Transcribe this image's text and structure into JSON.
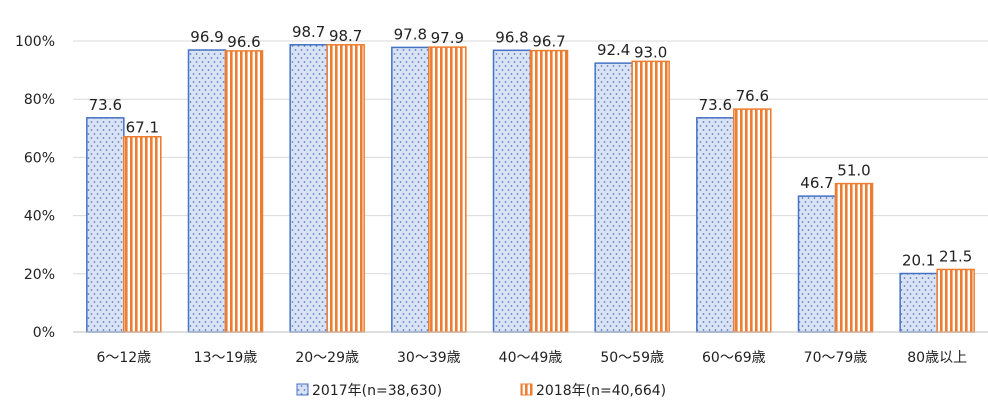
{
  "chart_data": {
    "type": "bar",
    "title": "",
    "xlabel": "",
    "ylabel": "",
    "ylim": [
      0,
      100
    ],
    "y_ticks": [
      "0%",
      "20%",
      "40%",
      "60%",
      "80%",
      "100%"
    ],
    "categories": [
      "6～12歳",
      "13～19歳",
      "20～29歳",
      "30～39歳",
      "40～49歳",
      "50～59歳",
      "60～69歳",
      "70～79歳",
      "80歳以上"
    ],
    "series": [
      {
        "name": "2017年(n=38,630)",
        "values": [
          73.6,
          96.9,
          98.7,
          97.8,
          96.8,
          92.4,
          73.6,
          46.7,
          20.1
        ],
        "labels": [
          "73.6",
          "96.9",
          "98.7",
          "97.8",
          "96.8",
          "92.4",
          "73.6",
          "46.7",
          "20.1"
        ],
        "fill": "#dae3f3",
        "dot": "#5b7fc7",
        "stroke": "#4472c4"
      },
      {
        "name": "2018年(n=40,664)",
        "values": [
          67.1,
          96.6,
          98.7,
          97.9,
          96.7,
          93.0,
          76.6,
          51.0,
          21.5
        ],
        "labels": [
          "67.1",
          "96.6",
          "98.7",
          "97.9",
          "96.7",
          "93.0",
          "76.6",
          "51.0",
          "21.5"
        ],
        "fill": "#ffffff",
        "stripe": "#ed7d31",
        "stroke": "#ed7d31"
      }
    ],
    "grid": true,
    "legend_position": "bottom"
  }
}
